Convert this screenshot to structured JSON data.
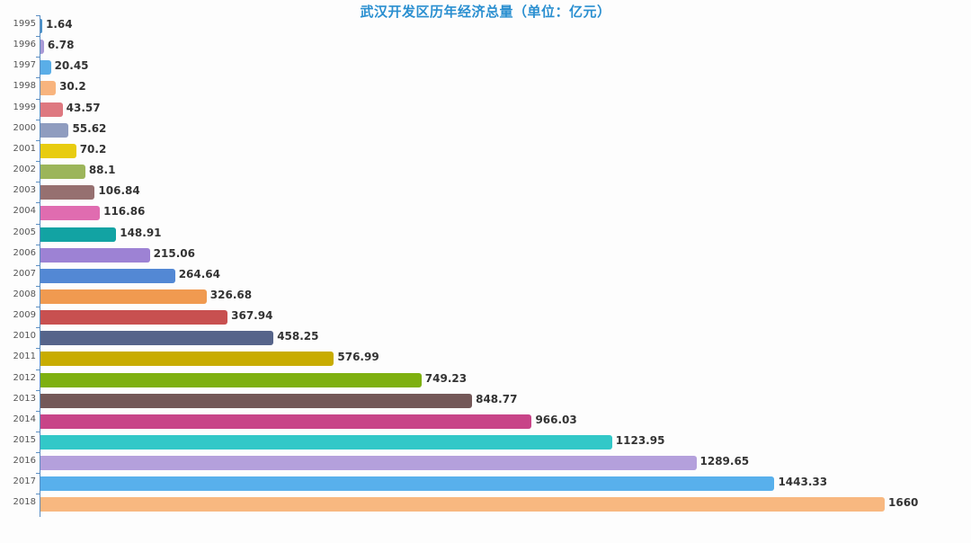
{
  "title": "武汉开发区历年经济总量（单位：亿元）",
  "chart_data": {
    "type": "bar",
    "orientation": "horizontal",
    "title": "武汉开发区历年经济总量（单位：亿元）",
    "xlabel": "",
    "ylabel": "",
    "unit": "亿元",
    "grid": false,
    "legend": null,
    "xlim": [
      0,
      1660
    ],
    "categories": [
      "1995",
      "1996",
      "1997",
      "1998",
      "1999",
      "2000",
      "2001",
      "2002",
      "2003",
      "2004",
      "2005",
      "2006",
      "2007",
      "2008",
      "2009",
      "2010",
      "2011",
      "2012",
      "2013",
      "2014",
      "2015",
      "2016",
      "2017",
      "2018"
    ],
    "values": [
      1.64,
      6.78,
      20.45,
      30.2,
      43.57,
      55.62,
      70.2,
      88.1,
      106.84,
      116.86,
      148.91,
      215.06,
      264.64,
      326.68,
      367.94,
      458.25,
      576.99,
      749.23,
      848.77,
      966.03,
      1123.95,
      1289.65,
      1443.33,
      1660
    ],
    "labels": [
      "1.64",
      "6.78",
      "20.45",
      "30.2",
      "43.57",
      "55.62",
      "70.2",
      "88.1",
      "106.84",
      "116.86",
      "148.91",
      "215.06",
      "264.64",
      "326.68",
      "367.94",
      "458.25",
      "576.99",
      "749.23",
      "848.77",
      "966.03",
      "1123.95",
      "1289.65",
      "1443.33",
      "1660"
    ],
    "colors": [
      "#4a90c8",
      "#a99ad6",
      "#5aaee8",
      "#f8b47e",
      "#de7880",
      "#8f9cbf",
      "#e8cc10",
      "#9cb55a",
      "#967070",
      "#e06cb0",
      "#12a3a3",
      "#9d82d4",
      "#5388d4",
      "#f09a50",
      "#c85050",
      "#56648a",
      "#c8ac00",
      "#7eb010",
      "#745858",
      "#c84488",
      "#32c8c8",
      "#b4a0dc",
      "#58b0ec",
      "#f8b880"
    ]
  }
}
